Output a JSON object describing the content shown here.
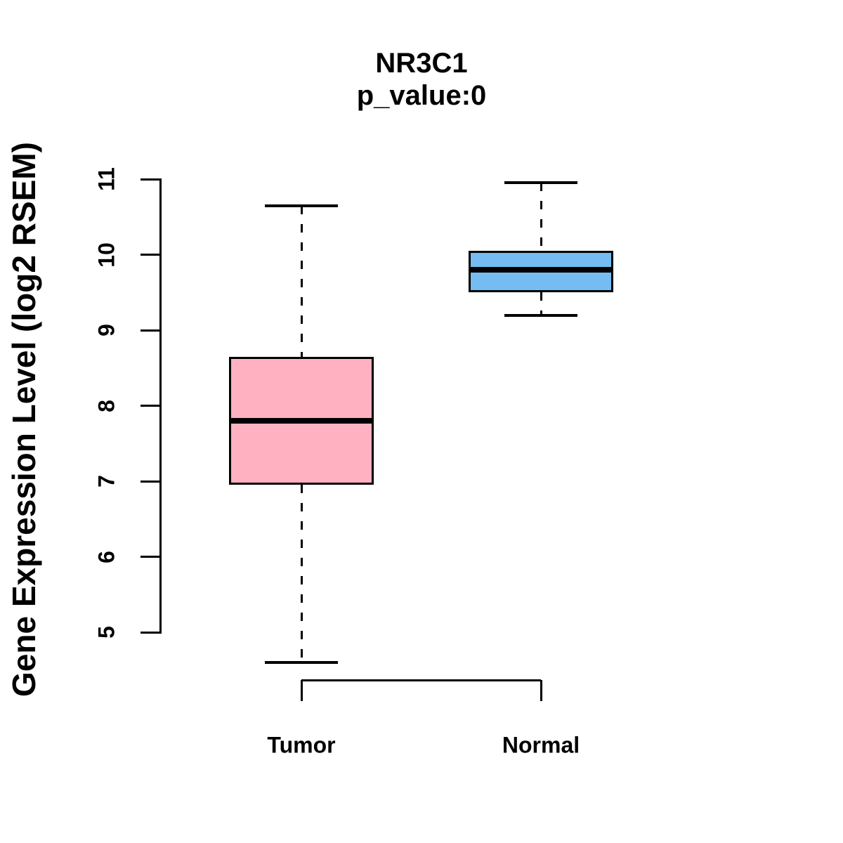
{
  "chart_data": {
    "type": "boxplot",
    "title": "NR3C1",
    "subtitle": "p_value:0",
    "ylabel": "Gene Expression Level (log2 RSEM)",
    "xlabel": "",
    "categories": [
      "Tumor",
      "Normal"
    ],
    "ylim": [
      5,
      11
    ],
    "yticks": [
      5,
      6,
      7,
      8,
      9,
      10,
      11
    ],
    "grid": false,
    "legend": "none",
    "series": [
      {
        "name": "Tumor",
        "lower_whisker": 4.6,
        "q1": 6.95,
        "median": 7.8,
        "q3": 8.65,
        "upper_whisker": 10.65,
        "fill_color": "#FFB1C1"
      },
      {
        "name": "Normal",
        "lower_whisker": 9.2,
        "q1": 9.5,
        "median": 9.8,
        "q3": 10.05,
        "upper_whisker": 10.95,
        "fill_color": "#74BCF2"
      }
    ],
    "line_color": "#000000",
    "background_color": "#FFFFFF"
  }
}
